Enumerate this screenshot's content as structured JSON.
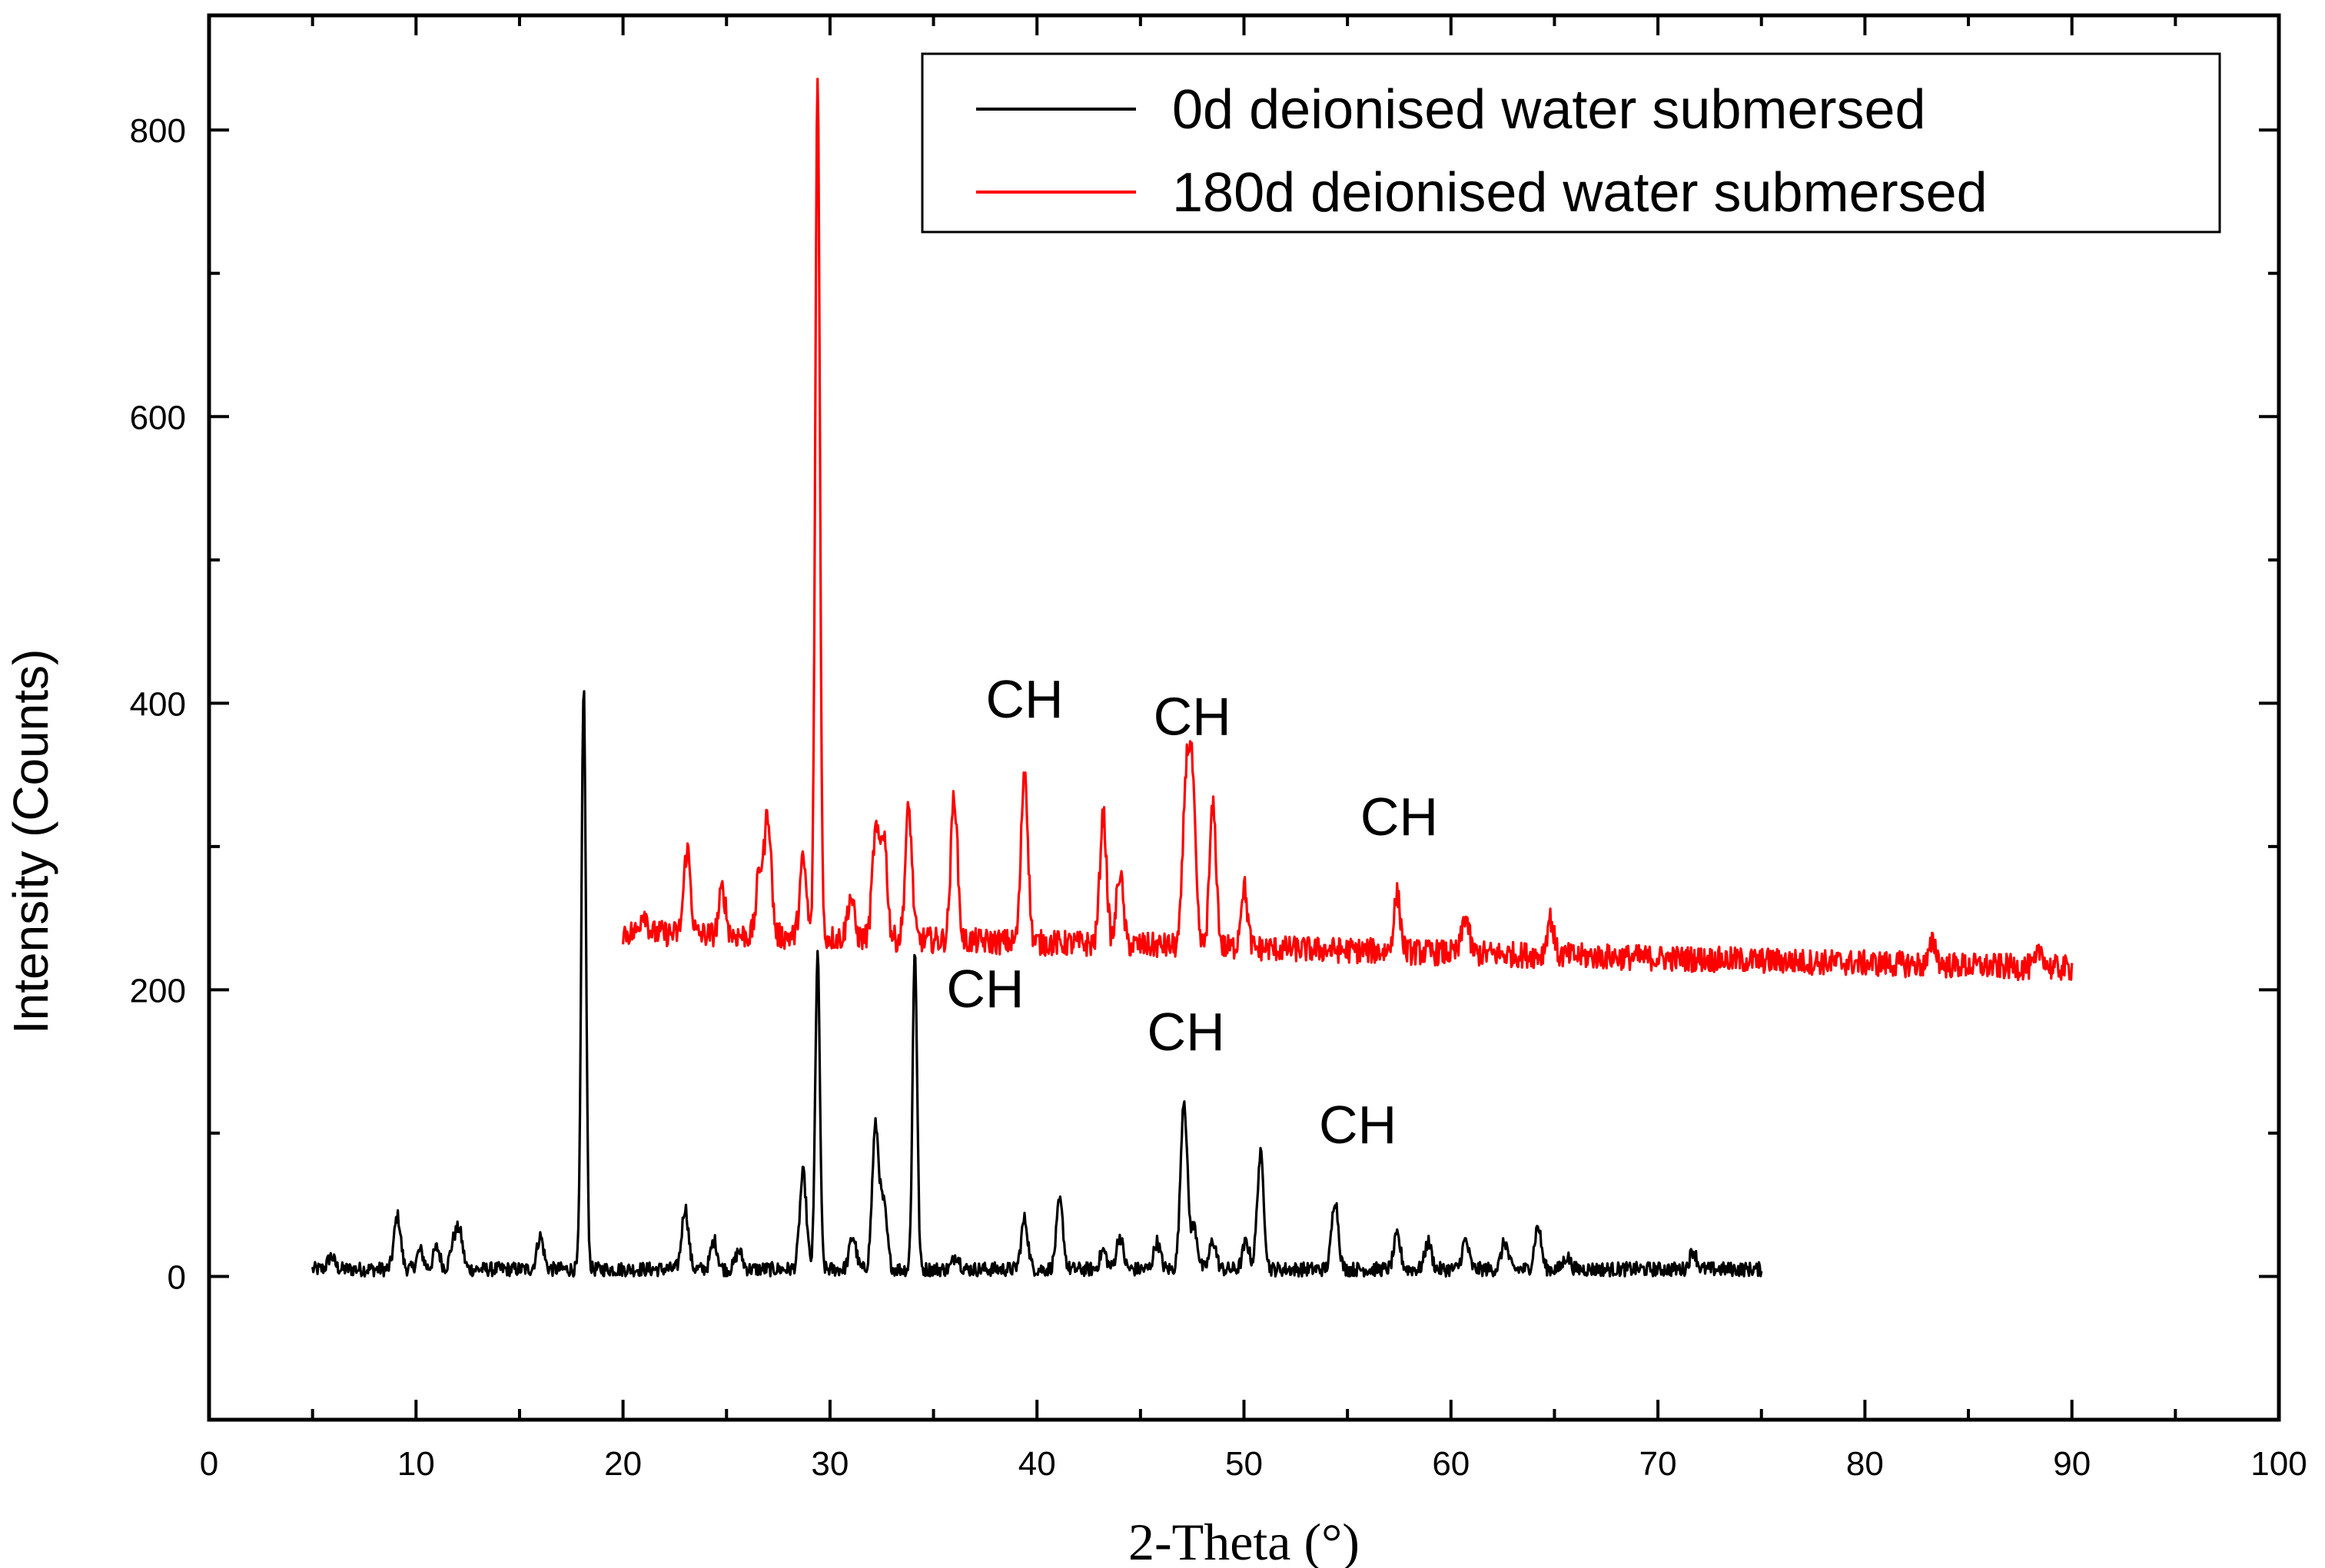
{
  "chart_data": {
    "type": "line",
    "xlabel": "2-Theta (°)",
    "ylabel": "Intensity (Counts)",
    "xlim": [
      0,
      100
    ],
    "ylim": [
      -100,
      880
    ],
    "x_ticks": [
      0,
      10,
      20,
      30,
      40,
      50,
      60,
      70,
      80,
      90,
      100
    ],
    "y_ticks": [
      0,
      200,
      400,
      600,
      800
    ],
    "grid": false,
    "legend": {
      "placement": "top-right",
      "entries": [
        "0d deionised water submersed",
        "180d deionised water submersed"
      ]
    },
    "series": [
      {
        "name": "0d deionised water submersed",
        "color": "#000000",
        "x_range": [
          5,
          75
        ],
        "baseline": 5,
        "peaks": [
          {
            "x": 5.9,
            "y": 14
          },
          {
            "x": 9.1,
            "y": 42
          },
          {
            "x": 10.2,
            "y": 18
          },
          {
            "x": 11.0,
            "y": 20
          },
          {
            "x": 11.8,
            "y": 22
          },
          {
            "x": 12.1,
            "y": 30
          },
          {
            "x": 16.0,
            "y": 28
          },
          {
            "x": 18.1,
            "y": 412
          },
          {
            "x": 23.0,
            "y": 48
          },
          {
            "x": 24.4,
            "y": 25
          },
          {
            "x": 25.6,
            "y": 18
          },
          {
            "x": 28.7,
            "y": 72
          },
          {
            "x": 29.4,
            "y": 225
          },
          {
            "x": 31.1,
            "y": 28
          },
          {
            "x": 32.2,
            "y": 104
          },
          {
            "x": 32.6,
            "y": 48
          },
          {
            "x": 34.1,
            "y": 228
          },
          {
            "x": 36.1,
            "y": 15
          },
          {
            "x": 39.4,
            "y": 40
          },
          {
            "x": 41.1,
            "y": 52
          },
          {
            "x": 43.2,
            "y": 18
          },
          {
            "x": 44.0,
            "y": 28
          },
          {
            "x": 45.8,
            "y": 24
          },
          {
            "x": 47.1,
            "y": 124
          },
          {
            "x": 47.6,
            "y": 34
          },
          {
            "x": 48.5,
            "y": 25
          },
          {
            "x": 50.1,
            "y": 24
          },
          {
            "x": 50.8,
            "y": 85
          },
          {
            "x": 54.4,
            "y": 54
          },
          {
            "x": 57.4,
            "y": 28
          },
          {
            "x": 58.9,
            "y": 24
          },
          {
            "x": 60.7,
            "y": 25
          },
          {
            "x": 62.6,
            "y": 24
          },
          {
            "x": 64.2,
            "y": 35
          },
          {
            "x": 65.6,
            "y": 14
          },
          {
            "x": 71.7,
            "y": 18
          }
        ]
      },
      {
        "name": "180d deionised water submersed",
        "color": "#ff0000",
        "x_range": [
          20,
          90
        ],
        "baseline_start": 240,
        "baseline_end": 215,
        "peaks": [
          {
            "x": 21.0,
            "y": 255
          },
          {
            "x": 23.1,
            "y": 298
          },
          {
            "x": 24.8,
            "y": 270
          },
          {
            "x": 26.6,
            "y": 282
          },
          {
            "x": 27.0,
            "y": 322
          },
          {
            "x": 28.7,
            "y": 290
          },
          {
            "x": 29.4,
            "y": 838
          },
          {
            "x": 31.0,
            "y": 265
          },
          {
            "x": 32.2,
            "y": 308
          },
          {
            "x": 32.6,
            "y": 308
          },
          {
            "x": 33.8,
            "y": 326
          },
          {
            "x": 36.0,
            "y": 336
          },
          {
            "x": 39.4,
            "y": 355
          },
          {
            "x": 43.2,
            "y": 322
          },
          {
            "x": 44.0,
            "y": 282
          },
          {
            "x": 47.2,
            "y": 338
          },
          {
            "x": 47.5,
            "y": 341
          },
          {
            "x": 48.5,
            "y": 327
          },
          {
            "x": 50.0,
            "y": 272
          },
          {
            "x": 57.4,
            "y": 266
          },
          {
            "x": 60.7,
            "y": 252
          },
          {
            "x": 64.8,
            "y": 250
          },
          {
            "x": 83.3,
            "y": 233
          },
          {
            "x": 88.5,
            "y": 228
          }
        ]
      }
    ],
    "annotations": [
      {
        "text": "CH",
        "x": 39.4,
        "y": 390
      },
      {
        "text": "CH",
        "x": 47.5,
        "y": 378
      },
      {
        "text": "CH",
        "x": 57.5,
        "y": 308
      },
      {
        "text": "CH",
        "x": 37.5,
        "y": 188
      },
      {
        "text": "CH",
        "x": 47.2,
        "y": 158
      },
      {
        "text": "CH",
        "x": 55.5,
        "y": 93
      }
    ]
  }
}
